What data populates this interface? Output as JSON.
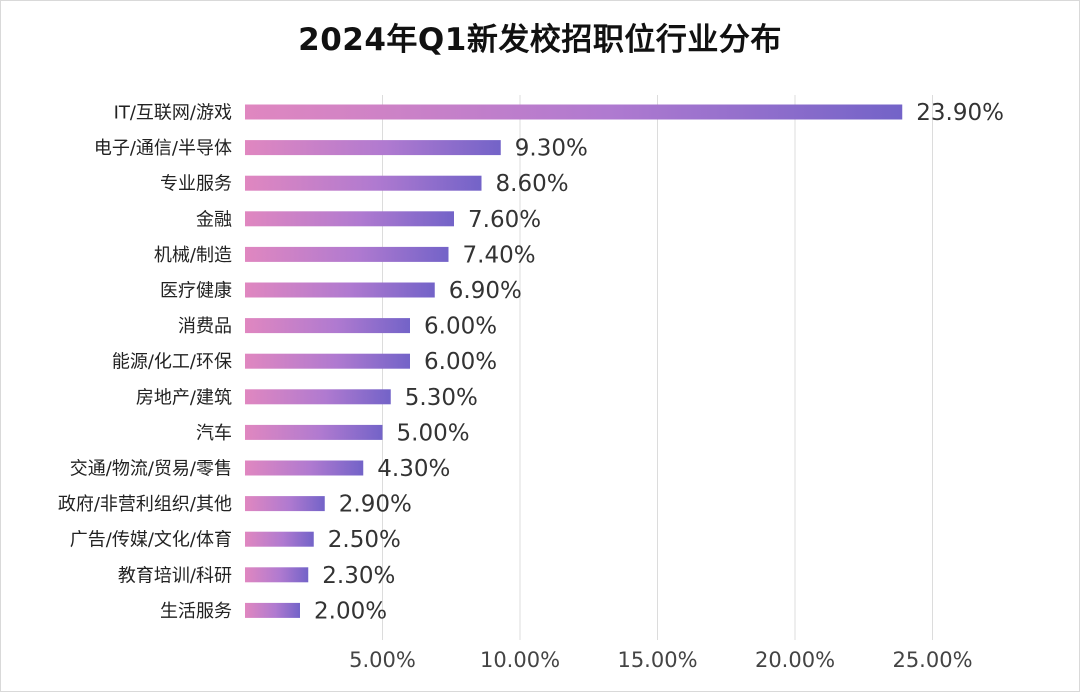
{
  "chart_data": {
    "type": "bar",
    "orientation": "horizontal",
    "title": "2024年Q1新发校招职位行业分布",
    "categories": [
      "IT/互联网/游戏",
      "电子/通信/半导体",
      "专业服务",
      "金融",
      "机械/制造",
      "医疗健康",
      "消费品",
      "能源/化工/环保",
      "房地产/建筑",
      "汽车",
      "交通/物流/贸易/零售",
      "政府/非营利组织/其他",
      "广告/传媒/文化/体育",
      "教育培训/科研",
      "生活服务"
    ],
    "values": [
      23.9,
      9.3,
      8.6,
      7.6,
      7.4,
      6.9,
      6.0,
      6.0,
      5.3,
      5.0,
      4.3,
      2.9,
      2.5,
      2.3,
      2.0
    ],
    "value_labels": [
      "23.90%",
      "9.30%",
      "8.60%",
      "7.60%",
      "7.40%",
      "6.90%",
      "6.00%",
      "6.00%",
      "5.30%",
      "5.00%",
      "4.30%",
      "2.90%",
      "2.50%",
      "2.30%",
      "2.00%"
    ],
    "x_ticks": [
      5,
      10,
      15,
      20,
      25
    ],
    "x_tick_labels": [
      "5.00%",
      "10.00%",
      "15.00%",
      "20.00%",
      "25.00%"
    ],
    "xlim": [
      0,
      25
    ],
    "xlabel": "",
    "ylabel": "",
    "grid": "vertical",
    "bar_gradient": [
      "#e087c0",
      "#b07ad0",
      "#7363c8"
    ]
  }
}
